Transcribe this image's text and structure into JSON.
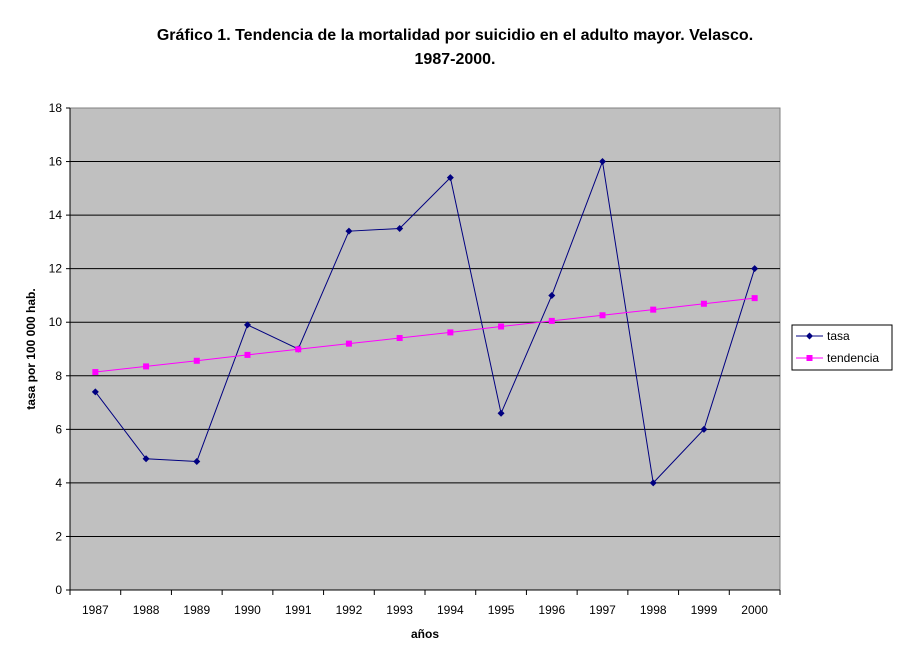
{
  "chart_data": {
    "type": "line",
    "title_line1": "Gráfico 1. Tendencia de la mortalidad por suicidio en el adulto mayor. Velasco.",
    "title_line2": "1987-2000.",
    "xlabel": "años",
    "ylabel": "tasa por 100 000 hab.",
    "ylim": [
      0,
      18
    ],
    "yticks": [
      0,
      2,
      4,
      6,
      8,
      10,
      12,
      14,
      16,
      18
    ],
    "grid": true,
    "legend_placement": "right",
    "plot_background": "#c0c0c0",
    "categories": [
      "1987",
      "1988",
      "1989",
      "1990",
      "1991",
      "1992",
      "1993",
      "1994",
      "1995",
      "1996",
      "1997",
      "1998",
      "1999",
      "2000"
    ],
    "series": [
      {
        "name": "tasa",
        "color": "#000080",
        "marker": "diamond",
        "values": [
          7.4,
          4.9,
          4.8,
          9.9,
          9.0,
          13.4,
          13.5,
          15.4,
          6.6,
          11.0,
          16.0,
          4.0,
          6.0,
          12.0
        ]
      },
      {
        "name": "tendencia",
        "color": "#ff00ff",
        "marker": "square",
        "values": [
          8.14,
          8.35,
          8.56,
          8.78,
          8.99,
          9.2,
          9.41,
          9.62,
          9.84,
          10.05,
          10.26,
          10.47,
          10.69,
          10.9
        ]
      }
    ]
  }
}
